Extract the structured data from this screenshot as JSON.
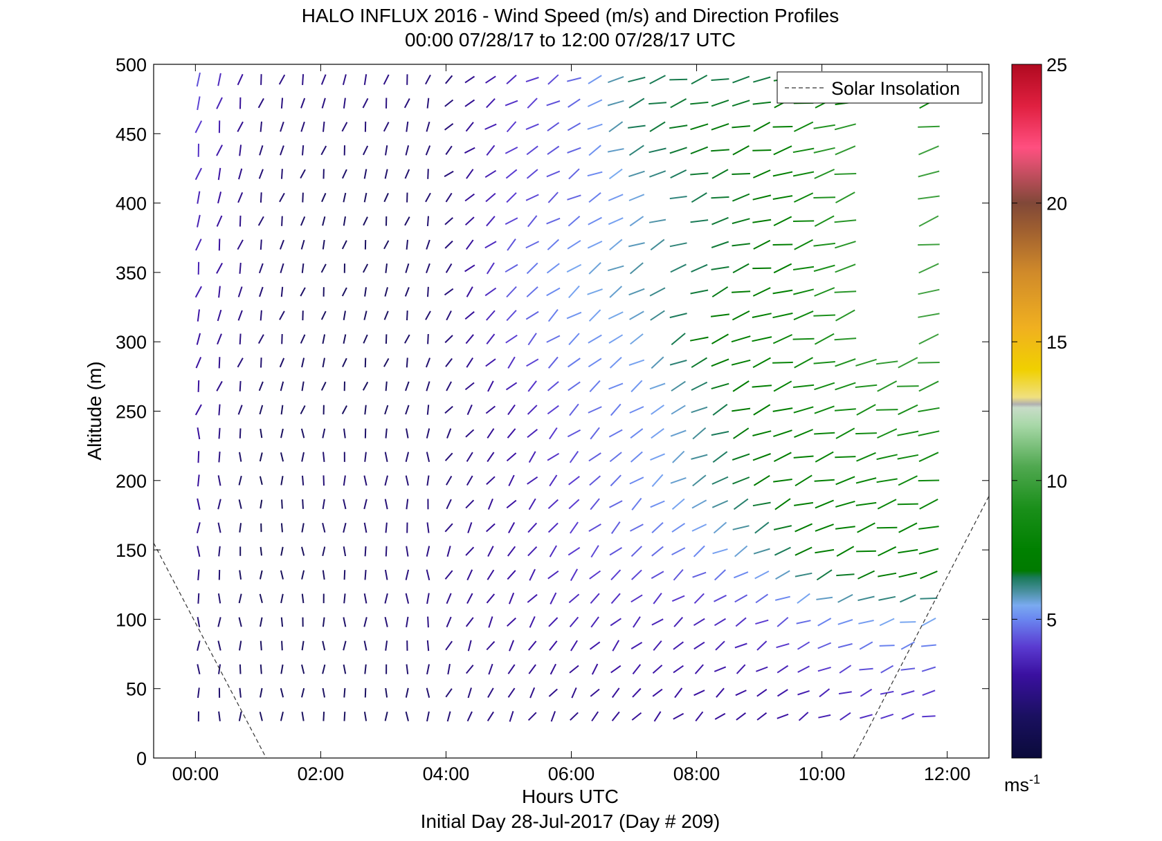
{
  "chart_data": {
    "type": "vector_profile",
    "title": "HALO INFLUX 2016 - Wind Speed (m/s) and Direction Profiles",
    "subtitle": "00:00 07/28/17 to 12:00 07/28/17  UTC",
    "xlabel": "Hours UTC",
    "x_footnote": "Initial Day 28-Jul-2017 (Day # 209)",
    "ylabel": "Altitude (m)",
    "xlim": [
      -0.6667,
      12.6667
    ],
    "ylim": [
      0,
      500
    ],
    "x_ticks": [
      "00:00",
      "02:00",
      "04:00",
      "06:00",
      "08:00",
      "10:00",
      "12:00"
    ],
    "x_tick_values": [
      0,
      2,
      4,
      6,
      8,
      10,
      12
    ],
    "y_ticks": [
      "0",
      "50",
      "100",
      "150",
      "200",
      "250",
      "300",
      "350",
      "400",
      "450",
      "500"
    ],
    "y_tick_values": [
      0,
      50,
      100,
      150,
      200,
      250,
      300,
      350,
      400,
      450,
      500
    ],
    "legend": {
      "entries": [
        "Solar Insolation"
      ],
      "location": "top-right"
    },
    "colorbar": {
      "range": [
        0,
        25
      ],
      "ticks": [
        "5",
        "10",
        "15",
        "20",
        "25"
      ],
      "tick_values": [
        5,
        10,
        15,
        20,
        25
      ],
      "units": "ms",
      "units_exponent": "-1"
    },
    "solar_insolation_dashed": [
      {
        "x": [
          -0.6667,
          1.13
        ],
        "y": [
          155,
          0
        ]
      },
      {
        "x": [
          10.5,
          12.68
        ],
        "y": [
          0,
          190
        ]
      }
    ],
    "wind_barbs_note": "Each segment: altitude (m), wind speed (m/s, colour), direction (degrees, orientation). Hourly-spaced profiles every ~20 min.",
    "profiles_sampled": [
      {
        "alt": 500,
        "speed_by_hour": [
          4.5,
          2.5,
          2.5,
          2.5,
          2.0,
          3.5,
          4.5,
          6.5,
          6.5,
          6.5,
          6.5,
          6.5
        ]
      },
      {
        "alt": 450,
        "speed_by_hour": [
          4.0,
          2.0,
          2.0,
          2.0,
          2.0,
          4.0,
          4.5,
          6.5,
          7.0,
          7.0,
          9.5,
          10.0
        ]
      },
      {
        "alt": 400,
        "speed_by_hour": [
          3.5,
          2.0,
          1.5,
          1.5,
          2.0,
          4.0,
          4.5,
          5.5,
          6.5,
          7.0,
          9.0,
          10.0
        ]
      },
      {
        "alt": 350,
        "speed_by_hour": [
          3.5,
          2.0,
          1.5,
          1.5,
          2.0,
          4.5,
          5.5,
          6.0,
          6.5,
          7.0,
          9.0,
          10.0
        ]
      },
      {
        "alt": 300,
        "speed_by_hour": [
          3.0,
          2.0,
          1.5,
          1.5,
          2.0,
          4.0,
          5.0,
          5.5,
          7.0,
          8.0,
          9.0,
          10.0
        ]
      },
      {
        "alt": 250,
        "speed_by_hour": [
          3.0,
          1.5,
          1.5,
          1.5,
          2.0,
          3.0,
          4.5,
          5.0,
          6.0,
          7.5,
          8.5,
          9.0
        ]
      },
      {
        "alt": 200,
        "speed_by_hour": [
          3.0,
          1.0,
          2.0,
          2.0,
          2.0,
          3.0,
          4.0,
          5.0,
          6.0,
          7.0,
          8.0,
          8.5
        ]
      },
      {
        "alt": 150,
        "speed_by_hour": [
          2.5,
          1.0,
          1.5,
          2.0,
          2.5,
          3.0,
          4.0,
          4.5,
          5.0,
          6.0,
          7.5,
          8.0
        ]
      },
      {
        "alt": 100,
        "speed_by_hour": [
          2.0,
          1.5,
          1.5,
          2.0,
          2.5,
          3.0,
          3.5,
          3.5,
          3.5,
          4.0,
          5.0,
          5.5
        ]
      },
      {
        "alt": 50,
        "speed_by_hour": [
          2.0,
          1.5,
          1.5,
          1.5,
          2.0,
          2.5,
          2.5,
          3.0,
          3.0,
          3.0,
          3.5,
          4.0
        ]
      }
    ]
  }
}
